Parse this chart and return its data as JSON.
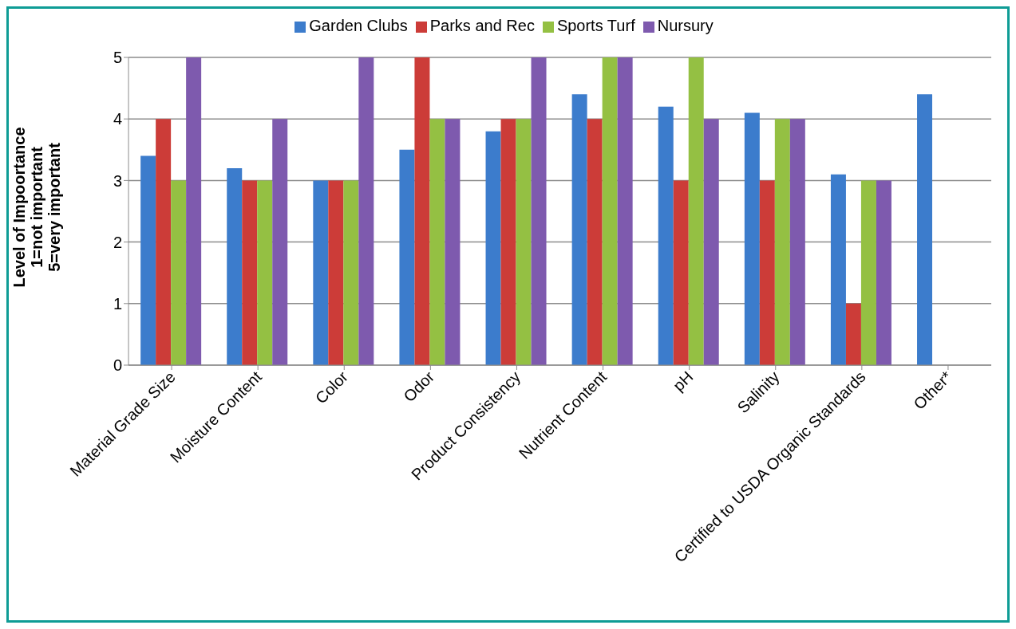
{
  "chart_data": {
    "type": "bar",
    "ylabel": "Level of Impoortance\n1=not important\n5=very important",
    "categories": [
      "Material Grade Size",
      "Moisture Content",
      "Color",
      "Odor",
      "Product Consistency",
      "Nutrient Content",
      "pH",
      "Salinity",
      "Certified to USDA Organic Standards",
      "Other*"
    ],
    "series": [
      {
        "name": "Garden Clubs",
        "color": "#3c7ccc",
        "values": [
          3.4,
          3.2,
          3.0,
          3.5,
          3.8,
          4.4,
          4.2,
          4.1,
          3.1,
          4.4
        ]
      },
      {
        "name": "Parks and Rec",
        "color": "#cc3c38",
        "values": [
          4,
          3,
          3,
          5,
          4,
          4,
          3,
          3,
          1,
          null
        ]
      },
      {
        "name": "Sports Turf",
        "color": "#94c043",
        "values": [
          3,
          3,
          3,
          4,
          4,
          5,
          5,
          4,
          3,
          null
        ]
      },
      {
        "name": "Nursury",
        "color": "#7e5aae",
        "values": [
          5,
          4,
          5,
          4,
          5,
          5,
          4,
          4,
          3,
          null
        ]
      }
    ],
    "ylim": [
      0,
      5
    ],
    "yticks": [
      0,
      1,
      2,
      3,
      4,
      5
    ],
    "grid": "y",
    "legend": "top"
  }
}
